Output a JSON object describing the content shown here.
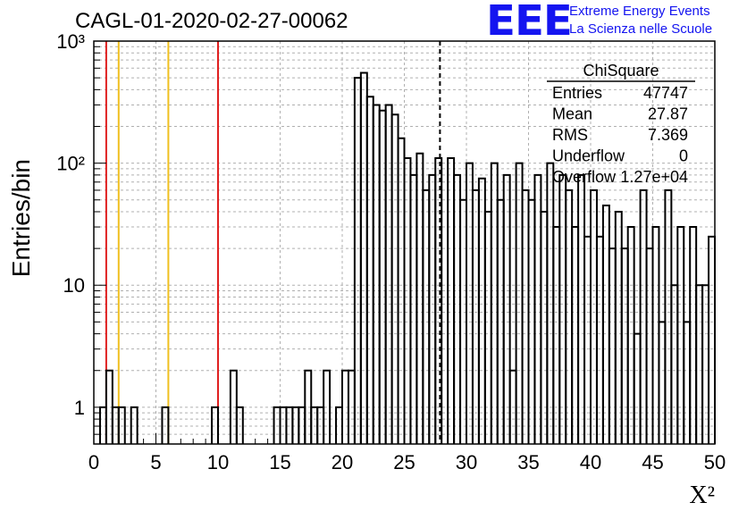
{
  "title": "CAGL-01-2020-02-27-00062",
  "logo": {
    "mark": "EEE",
    "line1": "Extreme Energy Events",
    "line2": "La Scienza nelle Scuole",
    "color": "#1414f0"
  },
  "stats_box": {
    "name": "ChiSquare",
    "rows": [
      {
        "label": "Entries",
        "value": "47747"
      },
      {
        "label": "Mean",
        "value": "27.87"
      },
      {
        "label": "RMS",
        "value": "7.369"
      },
      {
        "label": "Underflow",
        "value": "0"
      },
      {
        "label": "Overflow",
        "value": "1.27e+04"
      }
    ]
  },
  "chart_data": {
    "type": "histogram",
    "xlabel": "X²",
    "ylabel": "Entries/bin",
    "xlim": [
      0,
      50
    ],
    "ylim": [
      0.5,
      1000
    ],
    "yscale": "log",
    "grid": true,
    "bin_width": 0.5,
    "x_ticks": [
      "0",
      "5",
      "10",
      "15",
      "20",
      "25",
      "30",
      "35",
      "40",
      "45",
      "50"
    ],
    "y_ticks": [
      {
        "value": 1,
        "label": "1"
      },
      {
        "value": 10,
        "label": "10"
      },
      {
        "value": 100,
        "label": "10²"
      },
      {
        "value": 1000,
        "label": "10³"
      }
    ],
    "bins": [
      {
        "x": 0.5,
        "y": 1
      },
      {
        "x": 1.0,
        "y": 2
      },
      {
        "x": 1.5,
        "y": 1
      },
      {
        "x": 2.0,
        "y": 1
      },
      {
        "x": 3.0,
        "y": 1
      },
      {
        "x": 5.5,
        "y": 1
      },
      {
        "x": 9.5,
        "y": 1
      },
      {
        "x": 11.0,
        "y": 2
      },
      {
        "x": 11.5,
        "y": 1
      },
      {
        "x": 14.5,
        "y": 1
      },
      {
        "x": 15.0,
        "y": 1
      },
      {
        "x": 15.5,
        "y": 1
      },
      {
        "x": 16.0,
        "y": 1
      },
      {
        "x": 16.5,
        "y": 1
      },
      {
        "x": 17.0,
        "y": 2
      },
      {
        "x": 17.5,
        "y": 1
      },
      {
        "x": 18.0,
        "y": 1
      },
      {
        "x": 18.5,
        "y": 2
      },
      {
        "x": 19.5,
        "y": 1
      },
      {
        "x": 20.0,
        "y": 2
      },
      {
        "x": 20.5,
        "y": 2
      },
      {
        "x": 21.0,
        "y": 500
      },
      {
        "x": 21.5,
        "y": 550
      },
      {
        "x": 22.0,
        "y": 350
      },
      {
        "x": 22.5,
        "y": 300
      },
      {
        "x": 23.0,
        "y": 270
      },
      {
        "x": 23.5,
        "y": 300
      },
      {
        "x": 24.0,
        "y": 250
      },
      {
        "x": 24.5,
        "y": 160
      },
      {
        "x": 25.0,
        "y": 110
      },
      {
        "x": 25.5,
        "y": 80
      },
      {
        "x": 26.0,
        "y": 120
      },
      {
        "x": 26.5,
        "y": 60
      },
      {
        "x": 27.0,
        "y": 80
      },
      {
        "x": 27.5,
        "y": 110
      },
      {
        "x": 28.5,
        "y": 110
      },
      {
        "x": 29.0,
        "y": 80
      },
      {
        "x": 29.5,
        "y": 50
      },
      {
        "x": 30.0,
        "y": 100
      },
      {
        "x": 30.5,
        "y": 60
      },
      {
        "x": 31.0,
        "y": 75
      },
      {
        "x": 31.5,
        "y": 40
      },
      {
        "x": 32.0,
        "y": 100
      },
      {
        "x": 32.5,
        "y": 50
      },
      {
        "x": 33.0,
        "y": 80
      },
      {
        "x": 33.5,
        "y": 2
      },
      {
        "x": 34.0,
        "y": 100
      },
      {
        "x": 34.5,
        "y": 60
      },
      {
        "x": 35.0,
        "y": 50
      },
      {
        "x": 35.5,
        "y": 80
      },
      {
        "x": 36.0,
        "y": 40
      },
      {
        "x": 36.5,
        "y": 100
      },
      {
        "x": 37.0,
        "y": 30
      },
      {
        "x": 37.5,
        "y": 80
      },
      {
        "x": 38.0,
        "y": 60
      },
      {
        "x": 38.5,
        "y": 30
      },
      {
        "x": 39.0,
        "y": 80
      },
      {
        "x": 39.5,
        "y": 25
      },
      {
        "x": 40.0,
        "y": 60
      },
      {
        "x": 40.5,
        "y": 25
      },
      {
        "x": 41.0,
        "y": 45
      },
      {
        "x": 41.5,
        "y": 20
      },
      {
        "x": 42.0,
        "y": 40
      },
      {
        "x": 42.5,
        "y": 20
      },
      {
        "x": 43.0,
        "y": 30
      },
      {
        "x": 43.5,
        "y": 4
      },
      {
        "x": 44.0,
        "y": 60
      },
      {
        "x": 44.5,
        "y": 20
      },
      {
        "x": 45.0,
        "y": 30
      },
      {
        "x": 45.5,
        "y": 5
      },
      {
        "x": 46.0,
        "y": 60
      },
      {
        "x": 46.5,
        "y": 10
      },
      {
        "x": 47.0,
        "y": 30
      },
      {
        "x": 47.5,
        "y": 5
      },
      {
        "x": 48.0,
        "y": 30
      },
      {
        "x": 48.5,
        "y": 10
      },
      {
        "x": 49.0,
        "y": 10
      },
      {
        "x": 49.5,
        "y": 25
      }
    ],
    "vertical_lines": [
      {
        "x": 1.0,
        "color": "#e02020",
        "style": "solid"
      },
      {
        "x": 2.0,
        "color": "#f0c020",
        "style": "solid"
      },
      {
        "x": 6.0,
        "color": "#f0c020",
        "style": "solid"
      },
      {
        "x": 10.0,
        "color": "#e02020",
        "style": "solid"
      },
      {
        "x": 27.87,
        "color": "#000000",
        "style": "dashed"
      }
    ]
  }
}
